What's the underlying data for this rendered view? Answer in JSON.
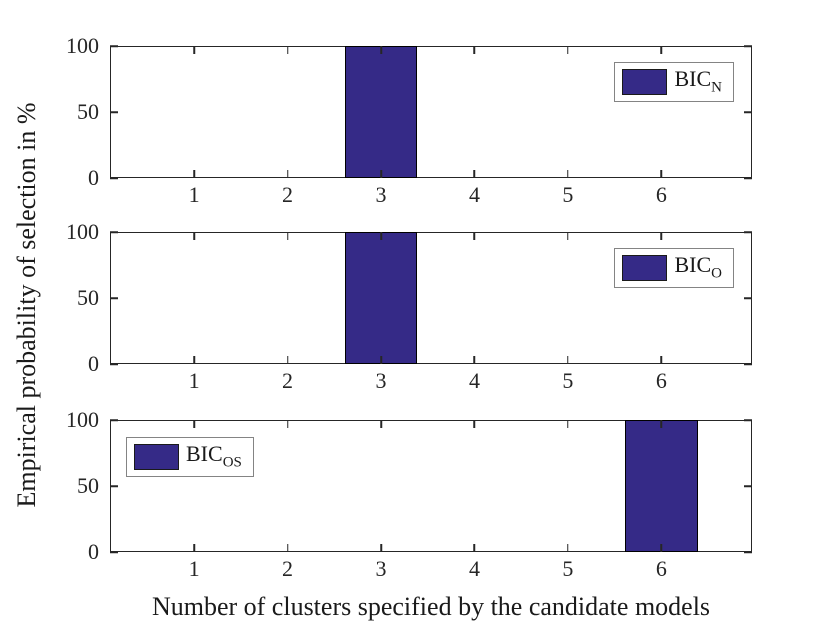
{
  "chart_data": {
    "type": "bar",
    "title": "",
    "xlabel": "Number of clusters specified by the candidate models",
    "ylabel": "Empirical probability of selection in %",
    "x_ticks": [
      "1",
      "2",
      "3",
      "4",
      "5",
      "6"
    ],
    "y_ticks": [
      "0",
      "50",
      "100"
    ],
    "y_tick_values": [
      0,
      50,
      100
    ],
    "x_tick_values": [
      1,
      2,
      3,
      4,
      5,
      6
    ],
    "xlim": [
      0.1,
      6.97
    ],
    "ylim": [
      0,
      100
    ],
    "bar_width": 0.78,
    "grid": "off",
    "panels": [
      {
        "name": "BIC_N",
        "legend": {
          "label": "BIC",
          "subscript": "N",
          "position": "top-right"
        },
        "bars": [
          {
            "x": 3,
            "value": 100
          }
        ]
      },
      {
        "name": "BIC_O",
        "legend": {
          "label": "BIC",
          "subscript": "O",
          "position": "top-right"
        },
        "bars": [
          {
            "x": 3,
            "value": 100
          }
        ]
      },
      {
        "name": "BIC_OS",
        "legend": {
          "label": "BIC",
          "subscript": "OS",
          "position": "top-left"
        },
        "bars": [
          {
            "x": 6,
            "value": 100
          }
        ]
      }
    ]
  },
  "colors": {
    "bar_fill": "#352A87",
    "bar_edge": "#000000",
    "axis": "#262626",
    "legend_border": "#848484",
    "background": "#ffffff",
    "text": "#1a1a1a"
  }
}
